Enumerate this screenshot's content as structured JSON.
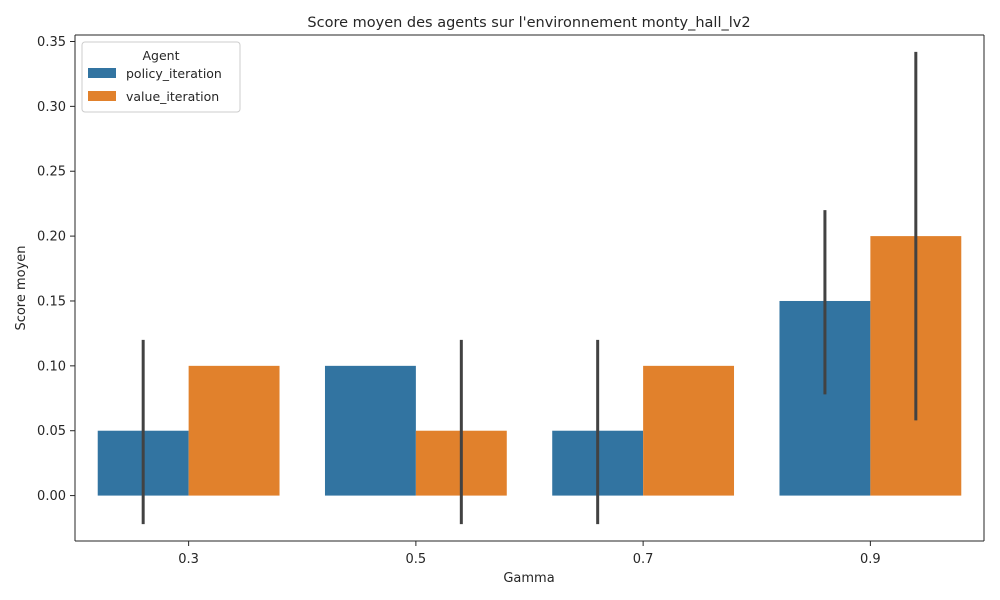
{
  "chart_data": {
    "type": "bar",
    "title": "Score moyen des agents sur l'environnement monty_hall_lv2",
    "xlabel": "Gamma",
    "ylabel": "Score moyen",
    "categories": [
      "0.3",
      "0.5",
      "0.7",
      "0.9"
    ],
    "ylim": [
      -0.035,
      0.355
    ],
    "yticks": [
      "0.00",
      "0.05",
      "0.10",
      "0.15",
      "0.20",
      "0.25",
      "0.30",
      "0.35"
    ],
    "legend": {
      "title": "Agent",
      "placement": "top-left"
    },
    "grid": false,
    "series": [
      {
        "name": "policy_iteration",
        "color": "#3274a1",
        "values": [
          0.05,
          0.1,
          0.05,
          0.15
        ],
        "ci": [
          [
            -0.022,
            0.12
          ],
          null,
          [
            -0.022,
            0.12
          ],
          [
            0.078,
            0.22
          ]
        ]
      },
      {
        "name": "value_iteration",
        "color": "#e1812c",
        "values": [
          0.1,
          0.05,
          0.1,
          0.2
        ],
        "ci": [
          null,
          [
            -0.022,
            0.12
          ],
          null,
          [
            0.058,
            0.342
          ]
        ]
      }
    ],
    "errorbar_color": "#424242"
  }
}
